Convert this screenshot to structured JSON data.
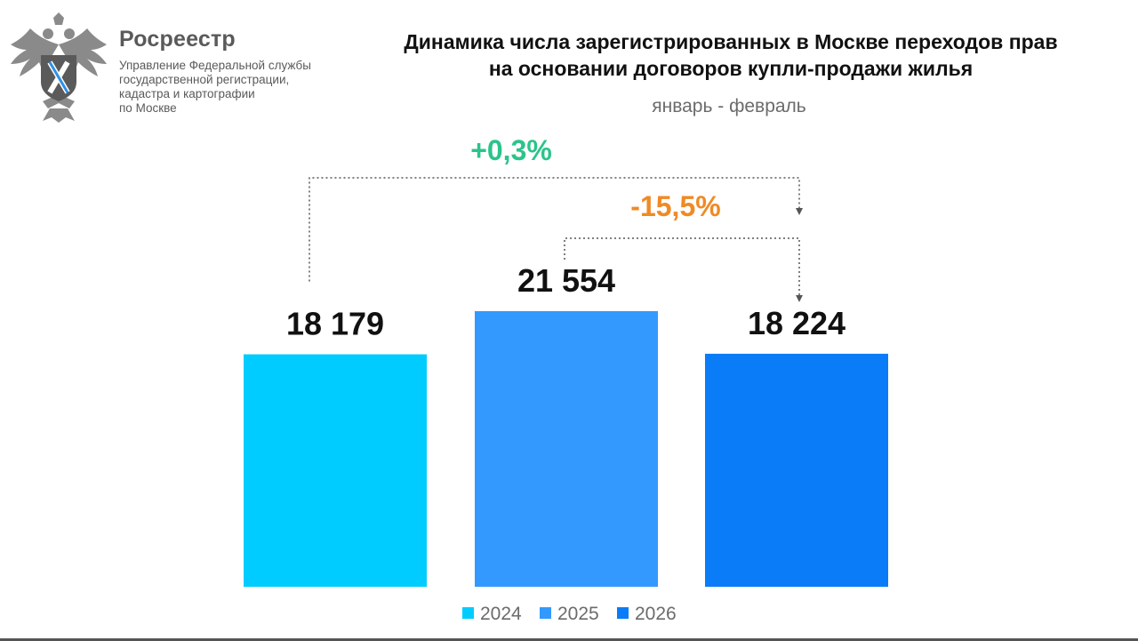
{
  "header": {
    "org_name": "Росреестр",
    "org_lines": [
      "Управление Федеральной службы",
      "государственной регистрации,",
      "кадастра и картографии",
      "по Москве"
    ],
    "logo_icon": "double-headed-eagle-emblem-icon"
  },
  "chart_data": {
    "type": "bar",
    "title_lines": [
      "Динамика числа зарегистрированных в Москве переходов прав",
      "на основании договоров купли-продажи жилья"
    ],
    "subtitle": "январь - февраль",
    "categories": [
      "2024",
      "2025",
      "2026"
    ],
    "values": [
      18179,
      21554,
      18224
    ],
    "value_labels": [
      "18 179",
      "21 554",
      "18 224"
    ],
    "colors": [
      "#00CCFF",
      "#3399FF",
      "#0A7CF7"
    ],
    "ylim": [
      0,
      22500
    ],
    "grid": false,
    "legend": "bottom",
    "annotations": [
      {
        "from": "2024",
        "to": "2026",
        "label": "+0,3%",
        "color": "#2BC48A"
      },
      {
        "from": "2025",
        "to": "2026",
        "label": "-15,5%",
        "color": "#F08A24"
      }
    ]
  }
}
